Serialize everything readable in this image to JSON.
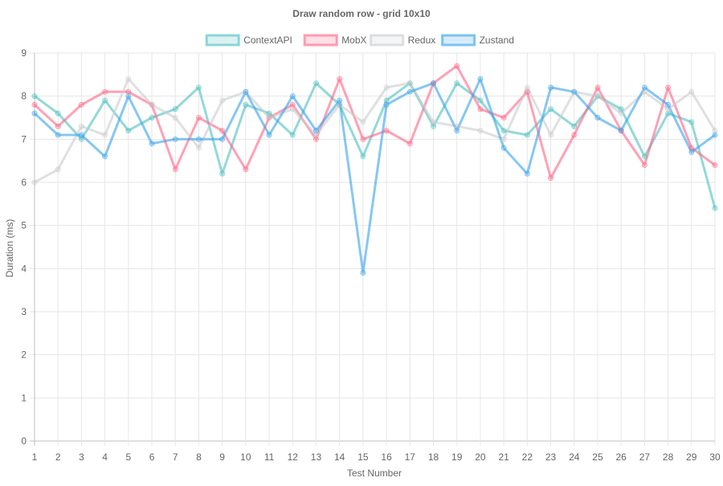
{
  "chart_data": {
    "type": "line",
    "title": "Draw random row - grid 10x10",
    "xlabel": "Test Number",
    "ylabel": "Duration (ms)",
    "ylim": [
      0,
      9
    ],
    "yticks": [
      0,
      1,
      2,
      3,
      4,
      5,
      6,
      7,
      8,
      9
    ],
    "grid": true,
    "legend_position": "top",
    "categories": [
      "1",
      "2",
      "3",
      "4",
      "5",
      "6",
      "7",
      "8",
      "9",
      "10",
      "11",
      "12",
      "13",
      "14",
      "15",
      "16",
      "17",
      "18",
      "19",
      "20",
      "21",
      "22",
      "23",
      "24",
      "25",
      "26",
      "27",
      "28",
      "29",
      "30"
    ],
    "series": [
      {
        "name": "ContextAPI",
        "color": "#4bc0c0",
        "values": [
          8.0,
          7.6,
          7.0,
          7.9,
          7.2,
          7.5,
          7.7,
          8.2,
          6.2,
          7.8,
          7.6,
          7.1,
          8.3,
          7.8,
          6.6,
          7.9,
          8.3,
          7.3,
          8.3,
          7.9,
          7.2,
          7.1,
          7.7,
          7.3,
          8.0,
          7.7,
          6.6,
          7.6,
          7.4,
          5.4
        ]
      },
      {
        "name": "MobX",
        "color": "#ff6384",
        "values": [
          7.8,
          7.3,
          7.8,
          8.1,
          8.1,
          7.8,
          6.3,
          7.5,
          7.2,
          6.3,
          7.5,
          7.8,
          7.0,
          8.4,
          7.0,
          7.2,
          6.9,
          8.3,
          8.7,
          7.7,
          7.5,
          8.1,
          6.1,
          7.1,
          8.2,
          7.2,
          6.4,
          8.2,
          6.8,
          6.4
        ]
      },
      {
        "name": "Redux",
        "color": "#c9cbcf",
        "values": [
          6.0,
          6.3,
          7.3,
          7.1,
          8.4,
          7.8,
          7.5,
          6.8,
          7.9,
          8.1,
          7.5,
          7.7,
          7.1,
          7.8,
          7.4,
          8.2,
          8.3,
          7.4,
          7.3,
          7.2,
          7.0,
          8.2,
          7.1,
          8.1,
          8.0,
          7.6,
          8.1,
          7.7,
          8.1,
          7.2
        ]
      },
      {
        "name": "Zustand",
        "color": "#36a2eb",
        "values": [
          7.6,
          7.1,
          7.1,
          6.6,
          8.0,
          6.9,
          7.0,
          7.0,
          7.0,
          8.1,
          7.1,
          8.0,
          7.2,
          7.9,
          3.9,
          7.8,
          8.1,
          8.3,
          7.2,
          8.4,
          6.8,
          6.2,
          8.2,
          8.1,
          7.5,
          7.2,
          8.2,
          7.8,
          6.7,
          7.1
        ]
      }
    ]
  }
}
